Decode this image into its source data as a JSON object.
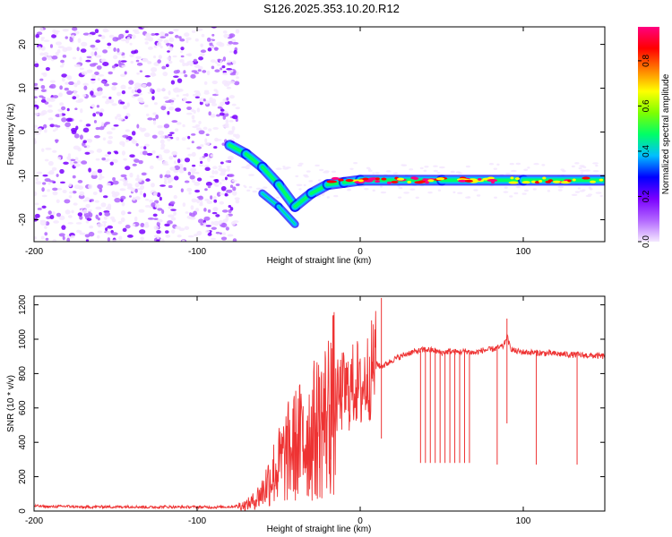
{
  "title": "S126.2025.353.10.20.R12",
  "colors": {
    "snr_line": "#ee3333",
    "frame": "#000000",
    "background": "#ffffff"
  },
  "chart_data": [
    {
      "type": "heatmap",
      "title": "S126.2025.353.10.20.R12",
      "xlabel": "Height of straight line (km)",
      "ylabel": "Frequency (Hz)",
      "xlim": [
        -200,
        150
      ],
      "ylim": [
        -25,
        24
      ],
      "x_ticks": [
        -200,
        -100,
        0,
        100
      ],
      "y_ticks": [
        20,
        10,
        0,
        -10,
        -20
      ],
      "colorbar": {
        "label": "Normalized spectral amplitude",
        "range": [
          0,
          0.95
        ],
        "ticks": [
          0,
          0.2,
          0.4,
          0.6,
          0.8
        ],
        "colormap": [
          "#f4e8ff",
          "#b266ff",
          "#7a00ff",
          "#0000ff",
          "#00bfff",
          "#00ff66",
          "#7fff00",
          "#ffff00",
          "#ff8000",
          "#ff0000",
          "#ff0080"
        ]
      },
      "features": {
        "noise_region_x": [
          -200,
          -75
        ],
        "carrier_track": [
          {
            "x": -80,
            "y": -3
          },
          {
            "x": -70,
            "y": -5
          },
          {
            "x": -60,
            "y": -8
          },
          {
            "x": -50,
            "y": -12
          },
          {
            "x": -40,
            "y": -17
          },
          {
            "x": -30,
            "y": -14
          },
          {
            "x": -20,
            "y": -12
          },
          {
            "x": -10,
            "y": -11.5
          },
          {
            "x": 0,
            "y": -11
          },
          {
            "x": 50,
            "y": -11
          },
          {
            "x": 100,
            "y": -11
          },
          {
            "x": 150,
            "y": -11
          }
        ],
        "secondary_track": [
          {
            "x": -60,
            "y": -14
          },
          {
            "x": -50,
            "y": -17
          },
          {
            "x": -40,
            "y": -21
          }
        ]
      }
    },
    {
      "type": "line",
      "xlabel": "Height of straight line (km)",
      "ylabel": "SNR (10 * v/v)",
      "xlim": [
        -200,
        150
      ],
      "ylim": [
        0,
        1250
      ],
      "x_ticks": [
        -200,
        -100,
        0,
        100
      ],
      "y_ticks": [
        0,
        200,
        400,
        600,
        800,
        1000,
        1200
      ],
      "series": [
        {
          "name": "SNR",
          "x": [
            -200,
            -190,
            -180,
            -170,
            -160,
            -150,
            -140,
            -130,
            -120,
            -110,
            -100,
            -90,
            -80,
            -70,
            -65,
            -60,
            -55,
            -50,
            -45,
            -40,
            -35,
            -30,
            -25,
            -20,
            -18,
            -15,
            -12,
            -10,
            -8,
            -5,
            -2,
            0,
            3,
            6,
            9,
            12,
            15,
            20,
            25,
            30,
            35,
            40,
            45,
            50,
            55,
            60,
            65,
            70,
            75,
            80,
            85,
            88,
            90,
            92,
            95,
            100,
            110,
            120,
            130,
            140,
            150
          ],
          "y": [
            30,
            25,
            28,
            22,
            25,
            24,
            26,
            22,
            25,
            23,
            24,
            22,
            25,
            35,
            60,
            110,
            200,
            260,
            330,
            380,
            420,
            450,
            500,
            560,
            600,
            640,
            680,
            700,
            690,
            720,
            760,
            680,
            760,
            800,
            880,
            840,
            850,
            880,
            900,
            920,
            930,
            940,
            935,
            920,
            930,
            925,
            930,
            920,
            935,
            940,
            950,
            960,
            1020,
            950,
            930,
            925,
            920,
            915,
            910,
            905,
            900
          ]
        }
      ],
      "dropouts": [
        {
          "x": 37,
          "y": 280
        },
        {
          "x": 40,
          "y": 280
        },
        {
          "x": 43,
          "y": 280
        },
        {
          "x": 46,
          "y": 280
        },
        {
          "x": 49,
          "y": 280
        },
        {
          "x": 52,
          "y": 280
        },
        {
          "x": 55,
          "y": 280
        },
        {
          "x": 58,
          "y": 280
        },
        {
          "x": 61,
          "y": 280
        },
        {
          "x": 64,
          "y": 280
        },
        {
          "x": 67,
          "y": 280
        },
        {
          "x": 84,
          "y": 270
        },
        {
          "x": 108,
          "y": 270
        },
        {
          "x": 133,
          "y": 270
        }
      ],
      "spikes": [
        {
          "x": -35,
          "y": 610
        },
        {
          "x": -25,
          "y": 780
        },
        {
          "x": -18,
          "y": 980
        },
        {
          "x": 13,
          "y": 1240
        },
        {
          "x": 90,
          "y": 1120
        }
      ]
    }
  ]
}
